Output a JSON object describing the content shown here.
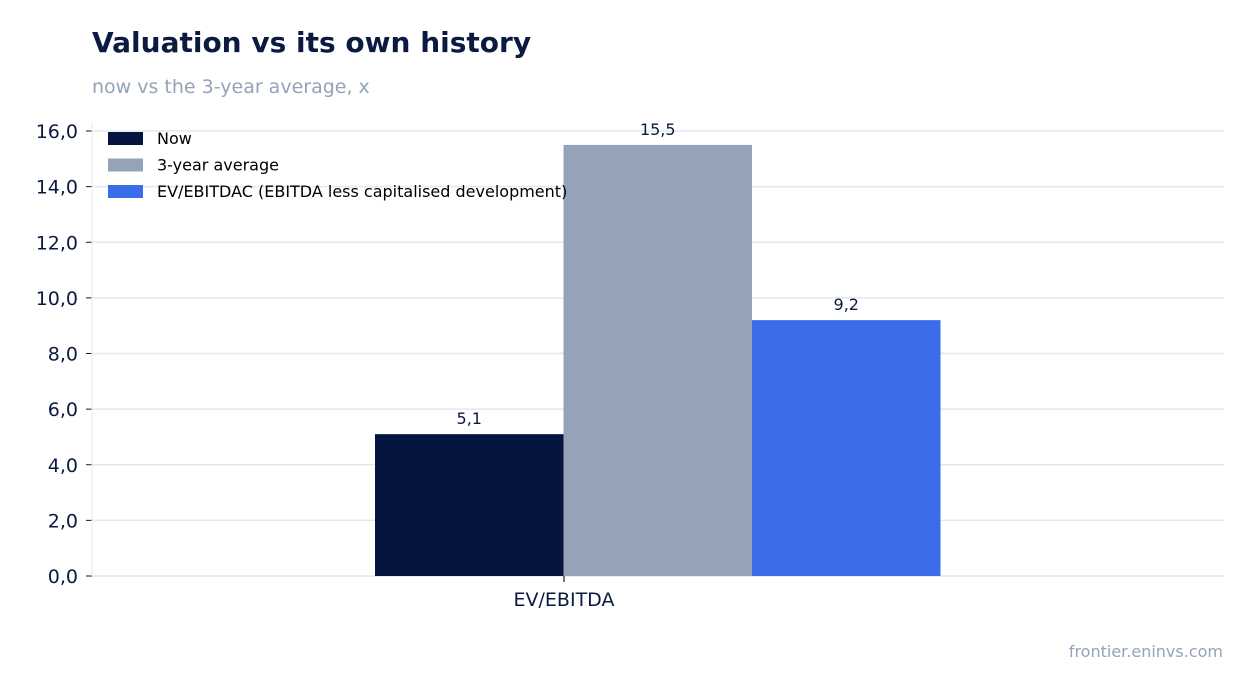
{
  "header": {
    "title": "Valuation vs its own history",
    "subtitle": "now vs the 3-year average, x"
  },
  "footer": {
    "credit": "frontier.eninvs.com"
  },
  "chart_data": {
    "type": "bar",
    "categories": [
      "EV/EBITDA"
    ],
    "series": [
      {
        "name": "Now",
        "values": [
          5.1
        ],
        "color": "#061540"
      },
      {
        "name": "3-year average",
        "values": [
          15.5
        ],
        "color": "#94a3b8"
      },
      {
        "name": "EV/EBITDAC (EBITDA less capitalised development)",
        "values": [
          9.2
        ],
        "color": "#3b6de8"
      }
    ],
    "data_labels": [
      "5,1",
      "15,5",
      "9,2"
    ],
    "y_ticks": [
      "0,0",
      "2,0",
      "4,0",
      "6,0",
      "8,0",
      "10,0",
      "12,0",
      "14,0",
      "16,0"
    ],
    "ylim": [
      0,
      16
    ],
    "grid": true,
    "legend_position": "top-left"
  }
}
